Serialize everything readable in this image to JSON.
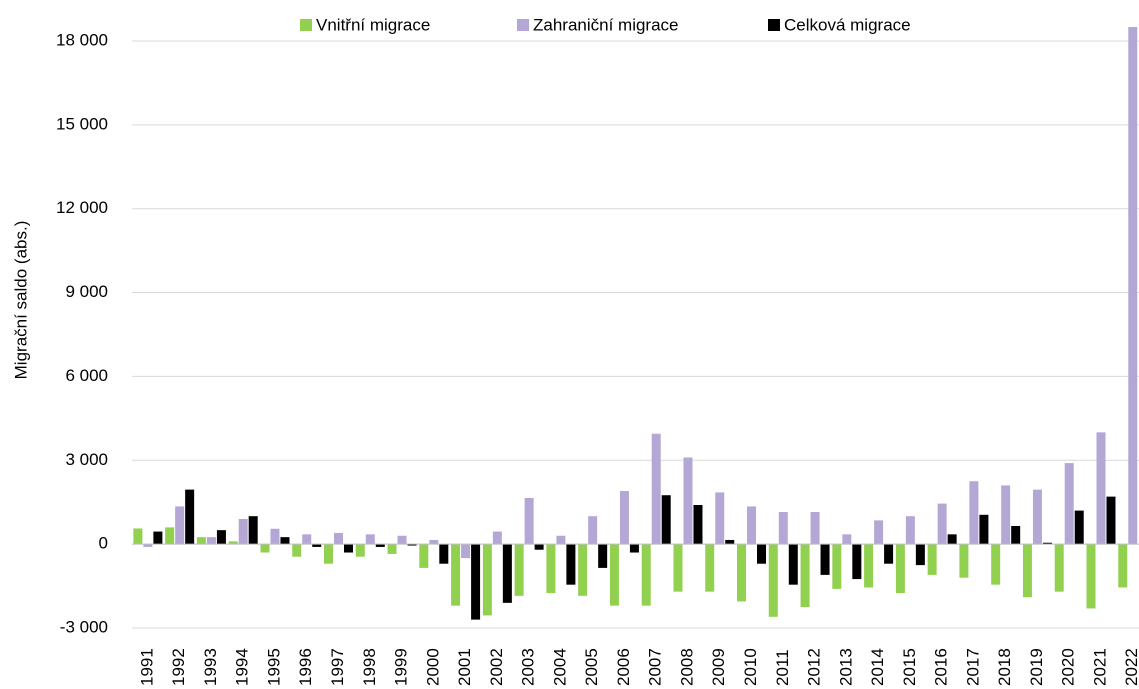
{
  "chart_data": {
    "type": "bar",
    "y_label": "Migrační saldo (abs.)",
    "categories": [
      "1991",
      "1992",
      "1993",
      "1994",
      "1995",
      "1996",
      "1997",
      "1998",
      "1999",
      "2000",
      "2001",
      "2002",
      "2003",
      "2004",
      "2005",
      "2006",
      "2007",
      "2008",
      "2009",
      "2010",
      "2011",
      "2012",
      "2013",
      "2014",
      "2015",
      "2016",
      "2017",
      "2018",
      "2019",
      "2020",
      "2021",
      "2022"
    ],
    "series": [
      {
        "name": "Vnitřní migrace",
        "color": "#92d050",
        "values": [
          560,
          600,
          250,
          100,
          -300,
          -450,
          -700,
          -450,
          -350,
          -850,
          -2200,
          -2550,
          -1850,
          -1750,
          -1850,
          -2200,
          -2200,
          -1700,
          -1700,
          -2050,
          -2600,
          -2250,
          -1600,
          -1550,
          -1750,
          -1100,
          -1200,
          -1450,
          -1900,
          -1700,
          -2300,
          -1550
        ]
      },
      {
        "name": "Zahraniční migrace",
        "color": "#b4a7d6",
        "values": [
          -100,
          1350,
          250,
          900,
          550,
          350,
          400,
          350,
          300,
          150,
          -500,
          450,
          1650,
          300,
          1000,
          1900,
          3950,
          3100,
          1850,
          1350,
          1150,
          1150,
          350,
          850,
          1000,
          1450,
          2250,
          2100,
          1950,
          2900,
          4000,
          18500
        ]
      },
      {
        "name": "Celková migrace",
        "color": "#000000",
        "values": [
          450,
          1950,
          500,
          1000,
          250,
          -100,
          -300,
          -100,
          -50,
          -700,
          -2700,
          -2100,
          -200,
          -1450,
          -850,
          -300,
          1750,
          1400,
          150,
          -700,
          -1450,
          -1100,
          -1250,
          -700,
          -750,
          350,
          1050,
          650,
          50,
          1200,
          1700,
          null
        ]
      }
    ],
    "ylim": [
      -3000,
      18500
    ],
    "yticks": [
      {
        "value": -3000,
        "label": "-3 000"
      },
      0,
      {
        "value": 3000,
        "label": "3 000"
      },
      {
        "value": 6000,
        "label": "6 000"
      },
      {
        "value": 9000,
        "label": "9 000"
      },
      {
        "value": 12000,
        "label": "12 000"
      },
      {
        "value": 15000,
        "label": "15 000"
      },
      {
        "value": 18000,
        "label": "18 000"
      }
    ],
    "grid": true,
    "legend": "top"
  }
}
